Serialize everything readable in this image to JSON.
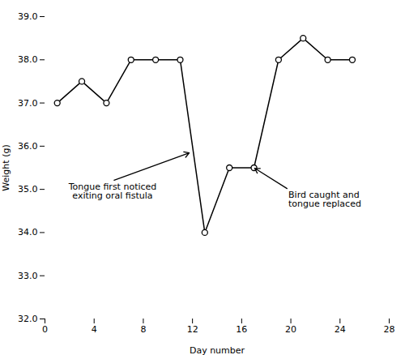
{
  "chart_data": {
    "type": "line",
    "x": [
      1,
      3,
      5,
      7,
      9,
      11,
      13,
      15,
      17,
      19,
      21,
      23,
      25
    ],
    "values": [
      37.0,
      37.5,
      37.0,
      38.0,
      38.0,
      38.0,
      34.0,
      35.5,
      35.5,
      38.0,
      38.5,
      38.0,
      38.0
    ],
    "color": "black",
    "marker": "circle",
    "xlim": [
      0,
      28
    ],
    "ylim": [
      32,
      39
    ],
    "xticks": [
      0,
      4,
      8,
      12,
      16,
      20,
      24,
      28
    ],
    "yticks": [
      32,
      33,
      34,
      35,
      36,
      37,
      38,
      39
    ],
    "xlabel": "Day number",
    "ylabel": "Weight (g)",
    "grid": false,
    "annotations": [
      {
        "text": "Tongue first noticed\nexiting oral fistula",
        "x": 11.8,
        "y": 35.85,
        "text_x": 5.5,
        "text_y": 35.2,
        "align": "center"
      },
      {
        "text": "Bird caught and\ntongue replaced",
        "x": 17.0,
        "y": 35.5,
        "text_x": 19.8,
        "text_y": 35.0,
        "align": "left"
      }
    ]
  }
}
